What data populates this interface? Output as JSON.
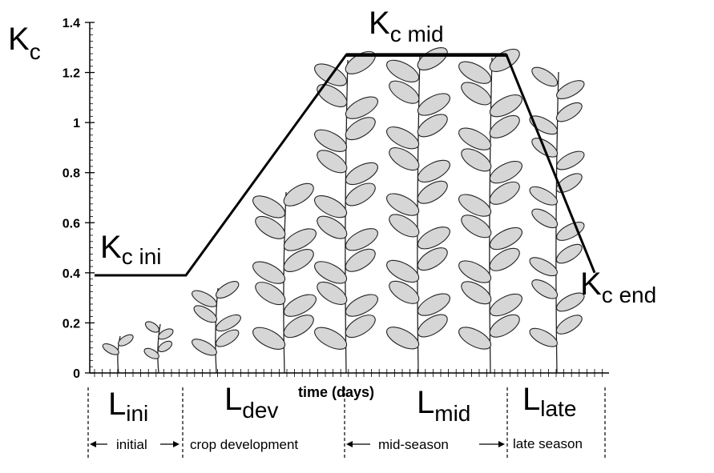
{
  "chart_data": {
    "type": "line",
    "title": "",
    "ylabel": "K",
    "ylabel_sub": "c",
    "xlabel": "time (days)",
    "ylim": [
      0,
      1.4
    ],
    "y_ticks": [
      "0",
      "0.2",
      "0.4",
      "0.6",
      "0.8",
      "1",
      "1.2",
      "1.4"
    ],
    "y_tick_values": [
      0,
      0.2,
      0.4,
      0.6,
      0.8,
      1,
      1.2,
      1.4
    ],
    "grid": false,
    "series": [
      {
        "x": [
          "start",
          "end of initial",
          "end of crop development",
          "end of mid-season",
          "end of late season"
        ],
        "y": [
          0.39,
          0.39,
          1.27,
          1.27,
          0.4
        ]
      }
    ],
    "annotations": {
      "kc_ini": {
        "main": "K",
        "sub": "c ini"
      },
      "kc_mid": {
        "main": "K",
        "sub": "c mid"
      },
      "kc_end": {
        "main": "K",
        "sub": "c end"
      }
    },
    "stages": [
      {
        "length_main": "L",
        "length_sub": "ini",
        "name": "initial"
      },
      {
        "length_main": "L",
        "length_sub": "dev",
        "name": "crop development"
      },
      {
        "length_main": "L",
        "length_sub": "mid",
        "name": "mid-season"
      },
      {
        "length_main": "L",
        "length_sub": "late",
        "name": "late season"
      }
    ]
  }
}
